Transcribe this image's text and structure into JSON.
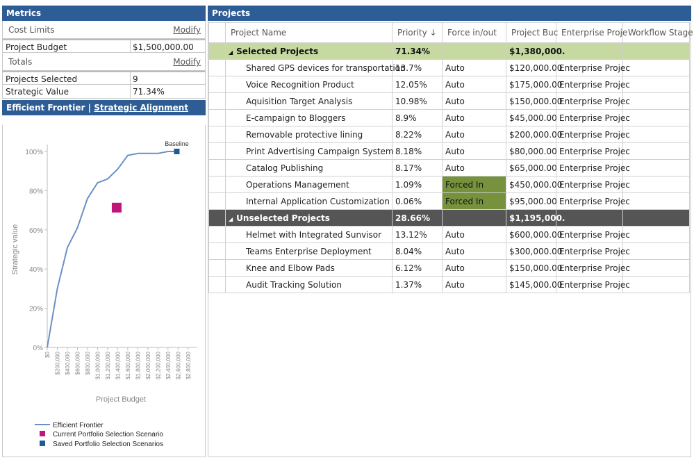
{
  "metrics": {
    "title": "Metrics",
    "cost_limits": {
      "label": "Cost Limits",
      "modify": "Modify"
    },
    "project_budget": {
      "label": "Project Budget",
      "value": "$1,500,000.00"
    },
    "totals": {
      "label": "Totals",
      "modify": "Modify"
    },
    "projects_selected": {
      "label": "Projects Selected",
      "value": "9"
    },
    "strategic_value": {
      "label": "Strategic Value",
      "value": "71.34%"
    }
  },
  "chart_tabs": {
    "tab1": "Efficient Frontier",
    "separator": "|",
    "tab2": "Strategic Alignment"
  },
  "chart_data": {
    "type": "line",
    "xlabel": "Project Budget",
    "ylabel": "Strategic value",
    "x_ticks": [
      "$0",
      "$200,000",
      "$400,000",
      "$600,000",
      "$800,000",
      "$1,000,000",
      "$1,200,000",
      "$1,400,000",
      "$1,600,000",
      "$1,800,000",
      "$2,000,000",
      "$2,200,000",
      "$2,400,000",
      "$2,600,000",
      "$2,800,000"
    ],
    "y_ticks": [
      "0%",
      "20%",
      "40%",
      "60%",
      "80%",
      "100%"
    ],
    "xlim": [
      0,
      2900000
    ],
    "ylim": [
      0,
      100
    ],
    "series": [
      {
        "name": "Efficient Frontier",
        "type": "line",
        "color": "#6a8fc8",
        "x": [
          0,
          200000,
          400000,
          600000,
          800000,
          1000000,
          1200000,
          1400000,
          1600000,
          1800000,
          2000000,
          2200000,
          2400000,
          2600000
        ],
        "y": [
          0,
          30,
          51,
          61,
          76,
          84,
          86,
          91,
          98,
          99,
          99,
          99,
          100,
          100
        ]
      },
      {
        "name": "Current Portfolio Selection Scenario",
        "type": "marker",
        "color": "#c0167a",
        "shape": "square-large",
        "x": [
          1380000
        ],
        "y": [
          71.34
        ]
      },
      {
        "name": "Saved Portfolio Selection Scenarios",
        "type": "marker",
        "color": "#1f5a96",
        "shape": "square",
        "x": [
          2575000
        ],
        "y": [
          100
        ],
        "labels": [
          "Baseline"
        ]
      }
    ],
    "legend": "bottom-left"
  },
  "projects": {
    "title": "Projects",
    "columns": [
      "Project Name",
      "Priority",
      "Force in/out",
      "Project Buc",
      "Enterprise Proje",
      "Workflow Stage"
    ],
    "sort_indicator": "↓",
    "groups": [
      {
        "name": "Selected Projects",
        "priority": "71.34%",
        "budget": "$1,380,000.",
        "collapse_icon": "triangle-down",
        "rows": [
          {
            "name": "Shared GPS devices for transportation",
            "priority": "13.7%",
            "force": "Auto",
            "budget": "$120,000.00",
            "enterprise": "Enterprise Projec",
            "forced": false
          },
          {
            "name": "Voice Recognition Product",
            "priority": "12.05%",
            "force": "Auto",
            "budget": "$175,000.00",
            "enterprise": "Enterprise Projec",
            "forced": false
          },
          {
            "name": "Aquisition Target Analysis",
            "priority": "10.98%",
            "force": "Auto",
            "budget": "$150,000.00",
            "enterprise": "Enterprise Projec",
            "forced": false
          },
          {
            "name": "E-campaign to Bloggers",
            "priority": "8.9%",
            "force": "Auto",
            "budget": "$45,000.00",
            "enterprise": "Enterprise Projec",
            "forced": false
          },
          {
            "name": "Removable protective lining",
            "priority": "8.22%",
            "force": "Auto",
            "budget": "$200,000.00",
            "enterprise": "Enterprise Projec",
            "forced": false
          },
          {
            "name": "Print Advertising Campaign System",
            "priority": "8.18%",
            "force": "Auto",
            "budget": "$80,000.00",
            "enterprise": "Enterprise Projec",
            "forced": false
          },
          {
            "name": "Catalog Publishing",
            "priority": "8.17%",
            "force": "Auto",
            "budget": "$65,000.00",
            "enterprise": "Enterprise Projec",
            "forced": false
          },
          {
            "name": "Operations Management",
            "priority": "1.09%",
            "force": "Forced In",
            "budget": "$450,000.00",
            "enterprise": "Enterprise Projec",
            "forced": true
          },
          {
            "name": "Internal Application Customization",
            "priority": "0.06%",
            "force": "Forced In",
            "budget": "$95,000.00",
            "enterprise": "Enterprise Projec",
            "forced": true
          }
        ]
      },
      {
        "name": "Unselected Projects",
        "priority": "28.66%",
        "budget": "$1,195,000.",
        "collapse_icon": "triangle-down",
        "rows": [
          {
            "name": "Helmet with Integrated Sunvisor",
            "priority": "13.12%",
            "force": "Auto",
            "budget": "$600,000.00",
            "enterprise": "Enterprise Projec",
            "forced": false
          },
          {
            "name": "Teams Enterprise Deployment",
            "priority": "8.04%",
            "force": "Auto",
            "budget": "$300,000.00",
            "enterprise": "Enterprise Projec",
            "forced": false
          },
          {
            "name": "Knee and Elbow Pads",
            "priority": "6.12%",
            "force": "Auto",
            "budget": "$150,000.00",
            "enterprise": "Enterprise Projec",
            "forced": false
          },
          {
            "name": "Audit Tracking Solution",
            "priority": "1.37%",
            "force": "Auto",
            "budget": "$145,000.00",
            "enterprise": "Enterprise Projec",
            "forced": false
          }
        ]
      }
    ]
  },
  "colors": {
    "header_bg": "#2e5c94",
    "selected_group": "#c6d9a0",
    "unselected_group": "#555555",
    "forced_in": "#76923c"
  }
}
